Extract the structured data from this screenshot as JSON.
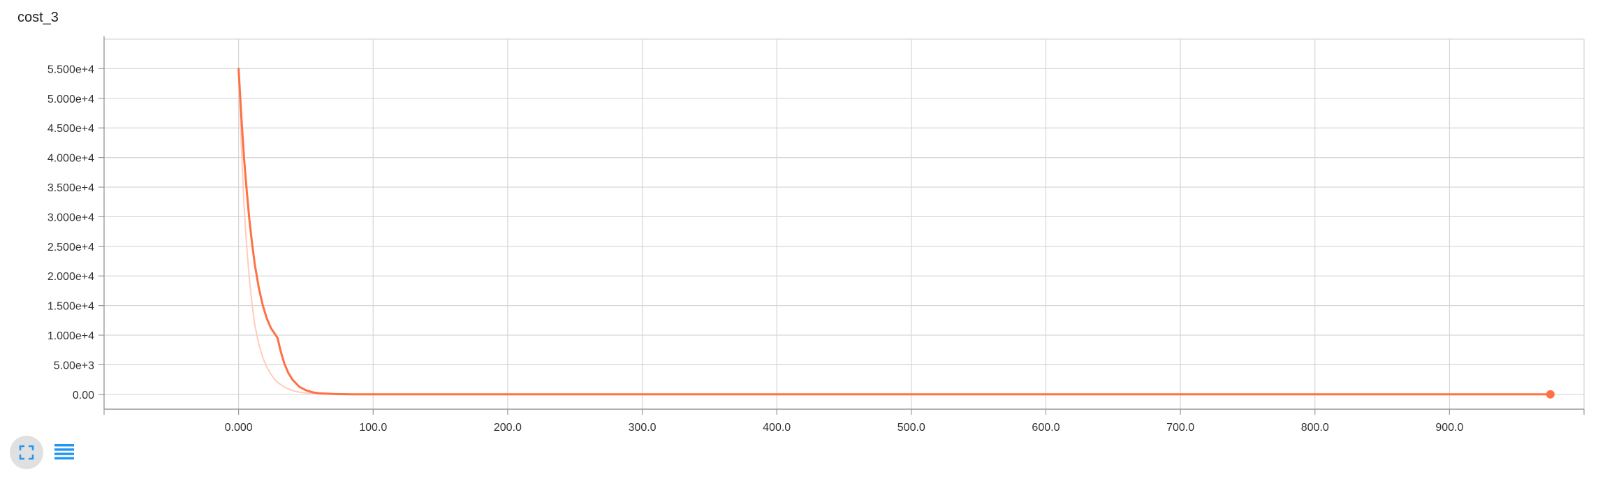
{
  "card": {
    "title": "cost_3"
  },
  "toolbar": {
    "buttons": [
      {
        "icon": "fit-domain-icon",
        "active": true
      },
      {
        "icon": "data-selection-icon",
        "active": false
      }
    ]
  },
  "colors": {
    "line": "#ff7043",
    "line_raw": "#ffccbc",
    "grid": "#d6d6d6",
    "icon": "#2196f3"
  },
  "chart_data": {
    "type": "line",
    "title": "cost_3",
    "xlabel": "",
    "ylabel": "",
    "xlim": [
      -100,
      1000
    ],
    "ylim": [
      -2500,
      60000
    ],
    "grid": true,
    "x_ticks": [
      0,
      100,
      200,
      300,
      400,
      500,
      600,
      700,
      800,
      900
    ],
    "x_tick_labels": [
      "0.000",
      "100.0",
      "200.0",
      "300.0",
      "400.0",
      "500.0",
      "600.0",
      "700.0",
      "800.0",
      "900.0"
    ],
    "y_ticks": [
      0,
      5000,
      10000,
      15000,
      20000,
      25000,
      30000,
      35000,
      40000,
      45000,
      50000,
      55000
    ],
    "y_tick_labels": [
      "0.00",
      "5.00e+3",
      "1.000e+4",
      "1.500e+4",
      "2.000e+4",
      "2.500e+4",
      "3.000e+4",
      "3.500e+4",
      "4.000e+4",
      "4.500e+4",
      "5.000e+4",
      "5.500e+4"
    ],
    "series": [
      {
        "role": "smoothed",
        "x": [
          0,
          2,
          4,
          6,
          8,
          10,
          12,
          15,
          18,
          21,
          24,
          27,
          29,
          31,
          34,
          37,
          40,
          45,
          50,
          55,
          60,
          70,
          80,
          90,
          100,
          120,
          150,
          200,
          300,
          500,
          700,
          900,
          975
        ],
        "y": [
          55000,
          47000,
          40000,
          34500,
          29500,
          25500,
          22000,
          18000,
          15000,
          12800,
          11200,
          10200,
          9500,
          7500,
          5200,
          3600,
          2500,
          1300,
          700,
          350,
          180,
          60,
          20,
          8,
          3,
          1,
          0,
          0,
          0,
          0,
          0,
          0,
          0
        ]
      },
      {
        "role": "raw",
        "x": [
          0,
          2,
          4,
          6,
          8,
          10,
          12,
          15,
          18,
          21,
          24,
          27,
          30,
          35,
          40,
          45,
          50,
          60,
          70,
          80,
          100,
          120
        ],
        "y": [
          55000,
          42000,
          32000,
          25000,
          19500,
          15200,
          11800,
          8500,
          6200,
          4600,
          3400,
          2500,
          1850,
          1100,
          650,
          380,
          220,
          80,
          30,
          10,
          2,
          0
        ]
      }
    ],
    "last_point": {
      "x": 975,
      "y": 0
    }
  }
}
